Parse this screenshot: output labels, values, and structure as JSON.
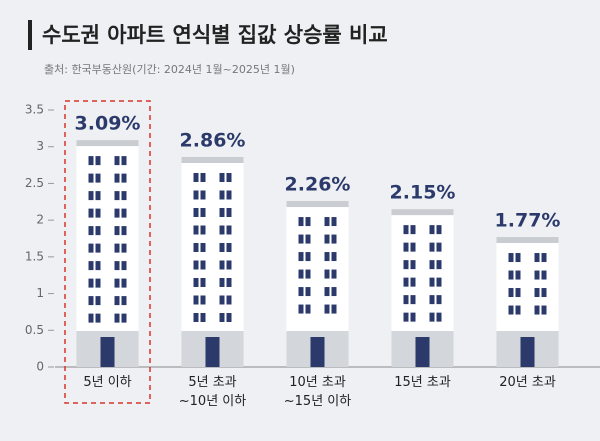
{
  "chart_data": {
    "type": "bar",
    "title": "수도권 아파트 연식별 집값 상승률 비교",
    "subtitle": "출처: 한국부동산원(기간: 2024년 1월~2025년 1월)",
    "categories": [
      "5년 이하",
      "5년 초과\n~10년 이하",
      "10년 초과\n~15년 이하",
      "15년 초과",
      "20년 초과"
    ],
    "values": [
      3.09,
      2.86,
      2.26,
      2.15,
      1.77
    ],
    "value_labels": [
      "3.09%",
      "2.86%",
      "2.26%",
      "2.15%",
      "1.77%"
    ],
    "color": "#ffffff",
    "ylim": [
      0,
      3.5
    ],
    "yticks": [
      0,
      0.5,
      1,
      1.5,
      2,
      2.5,
      3,
      3.5
    ],
    "grid": false
  }
}
